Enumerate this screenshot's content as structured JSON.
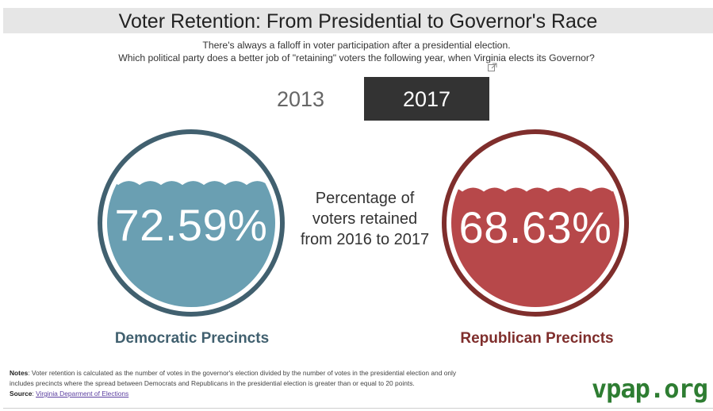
{
  "title": "Voter Retention: From Presidential to Governor's Race",
  "subtitle": {
    "line1": "There's always a falloff in voter participation after a presidential election.",
    "line2": "Which political party does a better job of \"retaining\" voters the following year, when Virginia elects its Governor?"
  },
  "year_tabs": [
    {
      "label": "2013",
      "selected": false
    },
    {
      "label": "2017",
      "selected": true
    }
  ],
  "center_label": {
    "line1": "Percentage of",
    "line2": "voters retained",
    "line3": "from 2016 to 2017"
  },
  "gauges": {
    "democratic": {
      "value_text": "72.59%",
      "fill_fraction": 0.7259,
      "label": "Democratic Precincts",
      "fill_color": "#6a9fb2",
      "ring_color": "#41606f"
    },
    "republican": {
      "value_text": "68.63%",
      "fill_fraction": 0.6863,
      "label": "Republican Precincts",
      "fill_color": "#b7484a",
      "ring_color": "#7f2e2c"
    }
  },
  "notes": {
    "notes_heading": "Notes",
    "notes_text": ": Voter retention is calculated as the number of votes in the governor's election divided by the number of votes in the presidential election and only includes precincts where the spread between Democrats and Republicans in the presidential election is greater than or equal to 20 points.",
    "source_heading": "Source",
    "source_link": "Virginia Deparment of Elections"
  },
  "brand": "vpap.org",
  "icons": {
    "expand": "expand-icon"
  }
}
